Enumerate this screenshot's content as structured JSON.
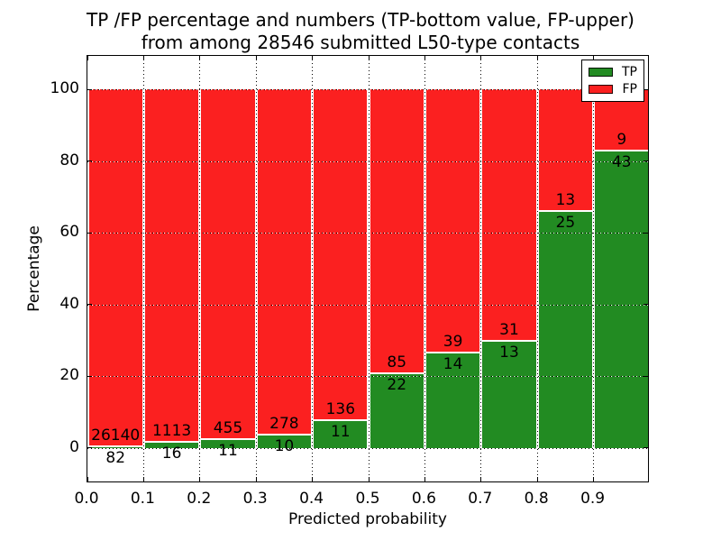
{
  "title": {
    "line1": "TP /FP percentage and numbers (TP-bottom value, FP-upper)",
    "line2": "from among 28546 submitted L50-type contacts"
  },
  "chart_data": {
    "type": "bar",
    "variant": "stacked-percentage-histogram",
    "title": "TP /FP percentage and numbers (TP-bottom value, FP-upper) from among 28546 submitted L50-type contacts",
    "xlabel": "Predicted probability",
    "ylabel": "Percentage",
    "total_submitted": 28546,
    "bin_starts": [
      0.0,
      0.1,
      0.2,
      0.3,
      0.4,
      0.5,
      0.6,
      0.7,
      0.8,
      0.9
    ],
    "bin_width": 0.1,
    "series": [
      {
        "name": "TP",
        "color": "#228b22",
        "counts": [
          82,
          16,
          11,
          10,
          11,
          22,
          14,
          13,
          25,
          43
        ],
        "position": "bottom"
      },
      {
        "name": "FP",
        "color": "#fb2020",
        "counts": [
          26140,
          1113,
          455,
          278,
          136,
          85,
          39,
          31,
          13,
          9
        ],
        "position": "top"
      }
    ],
    "bar_total_percent": 100,
    "xticks": [
      "0.0",
      "0.1",
      "0.2",
      "0.3",
      "0.4",
      "0.5",
      "0.6",
      "0.7",
      "0.8",
      "0.9"
    ],
    "xtick_values": [
      0.0,
      0.1,
      0.2,
      0.3,
      0.4,
      0.5,
      0.6,
      0.7,
      0.8,
      0.9
    ],
    "yticks": [
      0,
      20,
      40,
      60,
      80,
      100
    ],
    "xlim": [
      0,
      1
    ],
    "ylim": [
      -9.8,
      109.3
    ],
    "grid": true,
    "grid_style": "dotted",
    "axisbelow": false,
    "legend": {
      "position": "upper right",
      "entries": [
        {
          "label": "TP",
          "color": "#228b22"
        },
        {
          "label": "FP",
          "color": "#fb2020"
        }
      ]
    }
  }
}
